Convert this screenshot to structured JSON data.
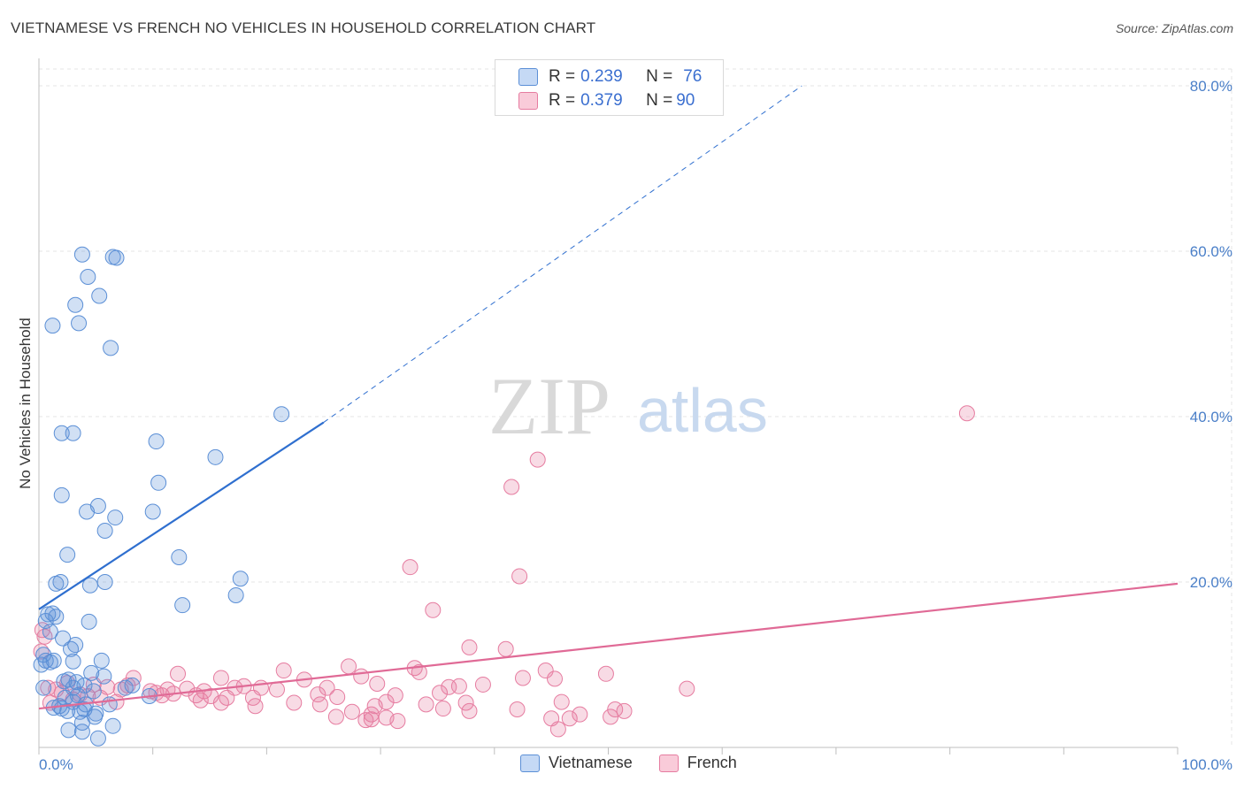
{
  "header": {
    "title": "VIETNAMESE VS FRENCH NO VEHICLES IN HOUSEHOLD CORRELATION CHART",
    "source": "Source: ZipAtlas.com"
  },
  "watermark": {
    "zip": "ZIP",
    "atlas": "atlas"
  },
  "legend": {
    "rows": [
      {
        "r_label": "R = ",
        "r_value": "0.239",
        "n_label": "N = ",
        "n_value": "76"
      },
      {
        "r_label": "R = ",
        "r_value": "0.379",
        "n_label": "N = ",
        "n_value": "90"
      }
    ]
  },
  "bottom_legend": {
    "items": [
      "Vietnamese",
      "French"
    ]
  },
  "chart_data": {
    "type": "scatter",
    "title": "VIETNAMESE VS FRENCH NO VEHICLES IN HOUSEHOLD CORRELATION CHART",
    "xlabel": "",
    "ylabel": "No Vehicles in Household",
    "xlim": [
      0,
      100
    ],
    "ylim": [
      0,
      80
    ],
    "y_ticks": [
      "20.0%",
      "40.0%",
      "60.0%",
      "80.0%"
    ],
    "y_tick_values": [
      20,
      40,
      60,
      80
    ],
    "x_tick_labels": [
      "0.0%",
      "100.0%"
    ],
    "x_tick_values": [
      0,
      100
    ],
    "grid": true,
    "colors": {
      "vietnamese": "#5b8fd6",
      "french": "#e67ca0",
      "vn_line": "#2f6fcf",
      "fr_line": "#e06a96"
    },
    "series": [
      {
        "name": "Vietnamese",
        "R": 0.239,
        "N": 76,
        "trend": {
          "x0": 0,
          "y0": 16.7,
          "x1": 25,
          "y1": 39.3,
          "dashed_to_x": 67,
          "dashed_to_y": 80
        },
        "points": [
          [
            3.8,
            59.6
          ],
          [
            6.5,
            59.3
          ],
          [
            6.8,
            59.2
          ],
          [
            4.3,
            56.9
          ],
          [
            5.3,
            54.6
          ],
          [
            3.2,
            53.5
          ],
          [
            1.2,
            51.0
          ],
          [
            3.5,
            51.3
          ],
          [
            6.3,
            48.3
          ],
          [
            2.0,
            38.0
          ],
          [
            3.0,
            38.0
          ],
          [
            10.3,
            37.0
          ],
          [
            21.3,
            40.3
          ],
          [
            15.5,
            35.1
          ],
          [
            10.5,
            32.0
          ],
          [
            2.0,
            30.5
          ],
          [
            5.2,
            29.2
          ],
          [
            4.2,
            28.5
          ],
          [
            10.0,
            28.5
          ],
          [
            6.7,
            27.8
          ],
          [
            5.8,
            26.2
          ],
          [
            2.5,
            23.3
          ],
          [
            12.3,
            23.0
          ],
          [
            1.5,
            19.8
          ],
          [
            1.9,
            20.0
          ],
          [
            4.5,
            19.6
          ],
          [
            5.8,
            20.0
          ],
          [
            17.7,
            20.4
          ],
          [
            17.3,
            18.4
          ],
          [
            12.6,
            17.2
          ],
          [
            0.8,
            16.1
          ],
          [
            1.2,
            16.2
          ],
          [
            1.5,
            15.8
          ],
          [
            0.6,
            15.3
          ],
          [
            4.4,
            15.2
          ],
          [
            1.0,
            14.0
          ],
          [
            2.1,
            13.2
          ],
          [
            3.2,
            12.4
          ],
          [
            2.8,
            11.9
          ],
          [
            0.4,
            11.2
          ],
          [
            0.6,
            10.5
          ],
          [
            1.0,
            10.3
          ],
          [
            0.2,
            10.0
          ],
          [
            1.3,
            10.5
          ],
          [
            3.0,
            10.4
          ],
          [
            5.5,
            10.5
          ],
          [
            4.6,
            9.0
          ],
          [
            2.6,
            8.2
          ],
          [
            3.0,
            7.2
          ],
          [
            4.0,
            7.5
          ],
          [
            5.7,
            8.6
          ],
          [
            8.2,
            7.5
          ],
          [
            9.7,
            6.2
          ],
          [
            2.3,
            6.0
          ],
          [
            3.0,
            5.5
          ],
          [
            4.1,
            5.2
          ],
          [
            6.2,
            5.2
          ],
          [
            1.3,
            4.8
          ],
          [
            2.0,
            4.7
          ],
          [
            4.0,
            4.6
          ],
          [
            2.5,
            4.4
          ],
          [
            3.6,
            4.3
          ],
          [
            5.0,
            4.1
          ],
          [
            4.9,
            3.7
          ],
          [
            3.8,
            3.0
          ],
          [
            6.5,
            2.6
          ],
          [
            2.6,
            2.1
          ],
          [
            3.8,
            1.9
          ],
          [
            5.2,
            1.1
          ],
          [
            1.8,
            5.0
          ],
          [
            3.4,
            6.3
          ],
          [
            4.8,
            6.8
          ],
          [
            7.6,
            7.2
          ],
          [
            2.2,
            8.0
          ],
          [
            3.3,
            7.9
          ],
          [
            0.4,
            7.2
          ]
        ]
      },
      {
        "name": "French",
        "R": 0.379,
        "N": 90,
        "trend": {
          "x0": 0,
          "y0": 4.7,
          "x1": 100,
          "y1": 19.8
        },
        "points": [
          [
            81.5,
            40.4
          ],
          [
            43.8,
            34.8
          ],
          [
            41.5,
            31.5
          ],
          [
            32.6,
            21.8
          ],
          [
            42.2,
            20.7
          ],
          [
            34.6,
            16.6
          ],
          [
            37.8,
            12.1
          ],
          [
            41.0,
            11.9
          ],
          [
            0.5,
            13.4
          ],
          [
            0.3,
            14.2
          ],
          [
            0.2,
            11.6
          ],
          [
            33.0,
            9.6
          ],
          [
            33.4,
            9.1
          ],
          [
            27.2,
            9.8
          ],
          [
            21.5,
            9.3
          ],
          [
            12.2,
            8.9
          ],
          [
            28.3,
            8.6
          ],
          [
            42.5,
            8.4
          ],
          [
            44.5,
            9.3
          ],
          [
            45.3,
            8.3
          ],
          [
            49.8,
            8.9
          ],
          [
            8.3,
            8.4
          ],
          [
            16.0,
            8.4
          ],
          [
            23.3,
            8.2
          ],
          [
            29.7,
            7.7
          ],
          [
            39.0,
            7.6
          ],
          [
            7.8,
            7.5
          ],
          [
            18.0,
            7.4
          ],
          [
            6.0,
            7.3
          ],
          [
            7.2,
            7.0
          ],
          [
            9.8,
            6.8
          ],
          [
            11.3,
            7.0
          ],
          [
            13.0,
            7.1
          ],
          [
            14.5,
            6.8
          ],
          [
            17.2,
            7.2
          ],
          [
            19.5,
            7.2
          ],
          [
            20.9,
            7.0
          ],
          [
            25.3,
            7.2
          ],
          [
            36.0,
            7.3
          ],
          [
            36.9,
            7.4
          ],
          [
            56.9,
            7.1
          ],
          [
            10.3,
            6.6
          ],
          [
            10.8,
            6.3
          ],
          [
            11.8,
            6.5
          ],
          [
            13.8,
            6.3
          ],
          [
            15.1,
            6.2
          ],
          [
            16.5,
            6.0
          ],
          [
            18.8,
            6.0
          ],
          [
            24.5,
            6.4
          ],
          [
            26.2,
            6.1
          ],
          [
            31.3,
            6.3
          ],
          [
            35.2,
            6.6
          ],
          [
            0.8,
            7.2
          ],
          [
            1.5,
            7.0
          ],
          [
            2.0,
            6.6
          ],
          [
            3.6,
            6.4
          ],
          [
            4.3,
            6.2
          ],
          [
            5.4,
            6.0
          ],
          [
            14.2,
            5.7
          ],
          [
            16.0,
            5.4
          ],
          [
            22.4,
            5.4
          ],
          [
            24.7,
            5.2
          ],
          [
            29.5,
            5.0
          ],
          [
            30.5,
            5.5
          ],
          [
            37.5,
            5.4
          ],
          [
            45.9,
            5.5
          ],
          [
            19.0,
            5.0
          ],
          [
            34.0,
            5.2
          ],
          [
            35.5,
            4.7
          ],
          [
            37.8,
            4.4
          ],
          [
            42.0,
            4.6
          ],
          [
            50.6,
            4.6
          ],
          [
            51.4,
            4.4
          ],
          [
            27.5,
            4.3
          ],
          [
            29.2,
            4.0
          ],
          [
            30.5,
            3.6
          ],
          [
            26.1,
            3.7
          ],
          [
            28.7,
            3.3
          ],
          [
            46.6,
            3.5
          ],
          [
            47.5,
            4.0
          ],
          [
            29.2,
            3.4
          ],
          [
            45.0,
            3.5
          ],
          [
            31.5,
            3.2
          ],
          [
            50.2,
            3.7
          ],
          [
            45.6,
            2.2
          ],
          [
            6.8,
            5.5
          ],
          [
            3.0,
            5.8
          ],
          [
            1.0,
            5.4
          ],
          [
            2.5,
            7.8
          ],
          [
            4.8,
            7.6
          ]
        ]
      }
    ]
  }
}
